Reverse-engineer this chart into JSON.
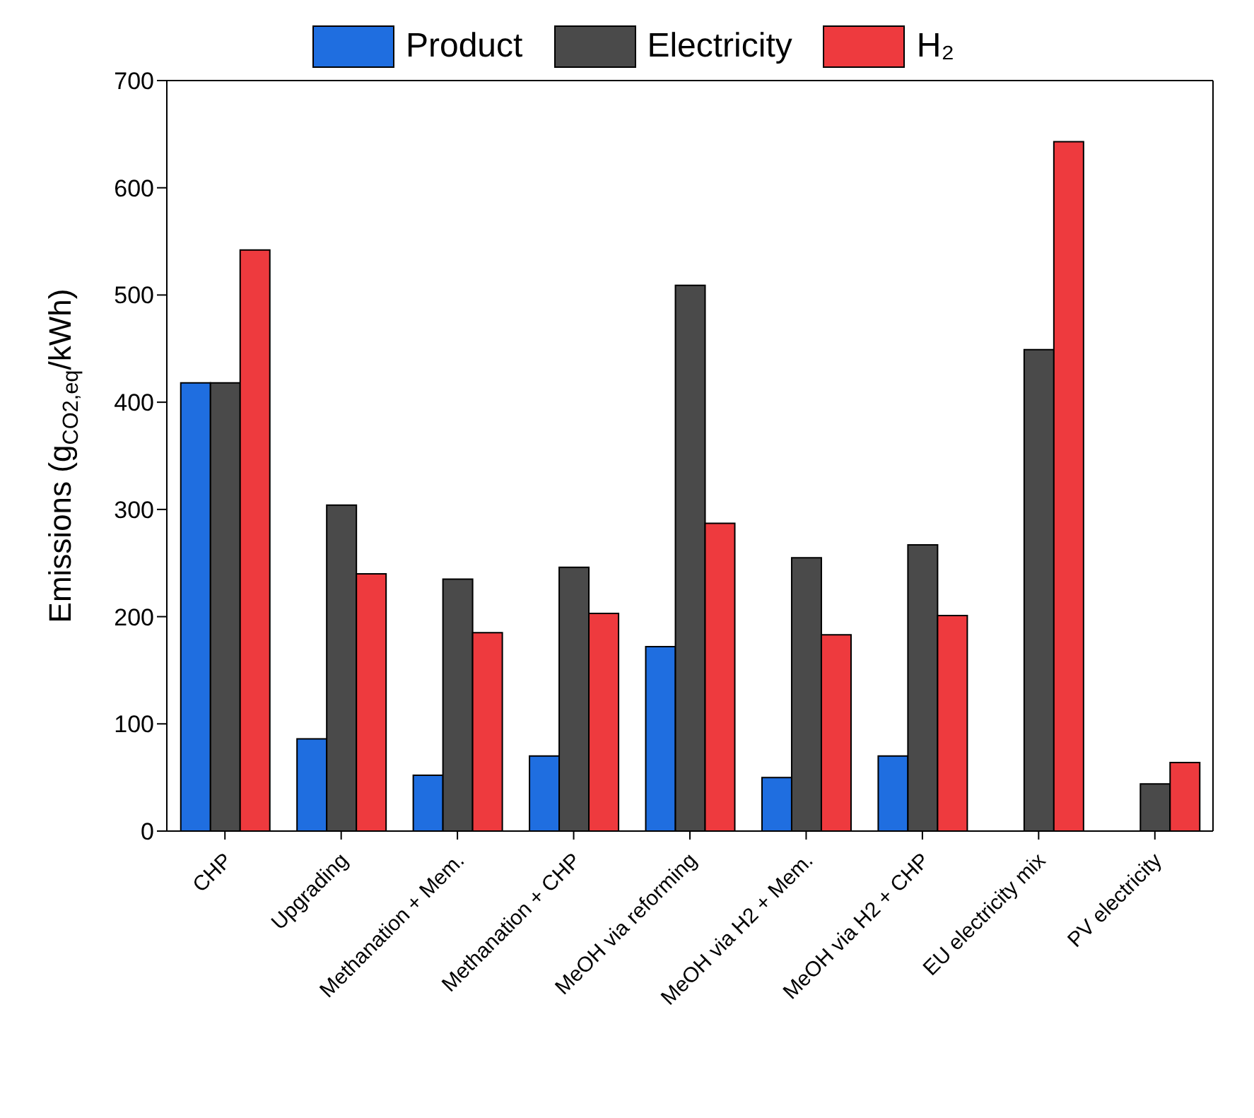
{
  "chart_data": {
    "type": "bar",
    "ylabel": "Emissions (g$_{CO2,eq}$/kWh)",
    "categories": [
      "CHP",
      "Upgrading",
      "Methanation + Mem.",
      "Methanation + CHP",
      "MeOH via reforming",
      "MeOH via H2 + Mem.",
      "MeOH via H2 + CHP",
      "EU electricity mix",
      "PV electricity"
    ],
    "series": [
      {
        "name": "Product",
        "color": "#1f6ee0",
        "values": [
          418,
          86,
          52,
          70,
          172,
          50,
          70,
          null,
          null
        ]
      },
      {
        "name": "Electricity",
        "color": "#4a4a4a",
        "values": [
          418,
          304,
          235,
          246,
          509,
          255,
          267,
          449,
          44
        ]
      },
      {
        "name": "H₂",
        "color": "#ee3a3e",
        "values": [
          542,
          240,
          185,
          203,
          287,
          183,
          201,
          643,
          64
        ]
      }
    ],
    "ylim": [
      0,
      700
    ],
    "yticks": [
      0,
      100,
      200,
      300,
      400,
      500,
      600,
      700
    ],
    "legend": "top"
  }
}
